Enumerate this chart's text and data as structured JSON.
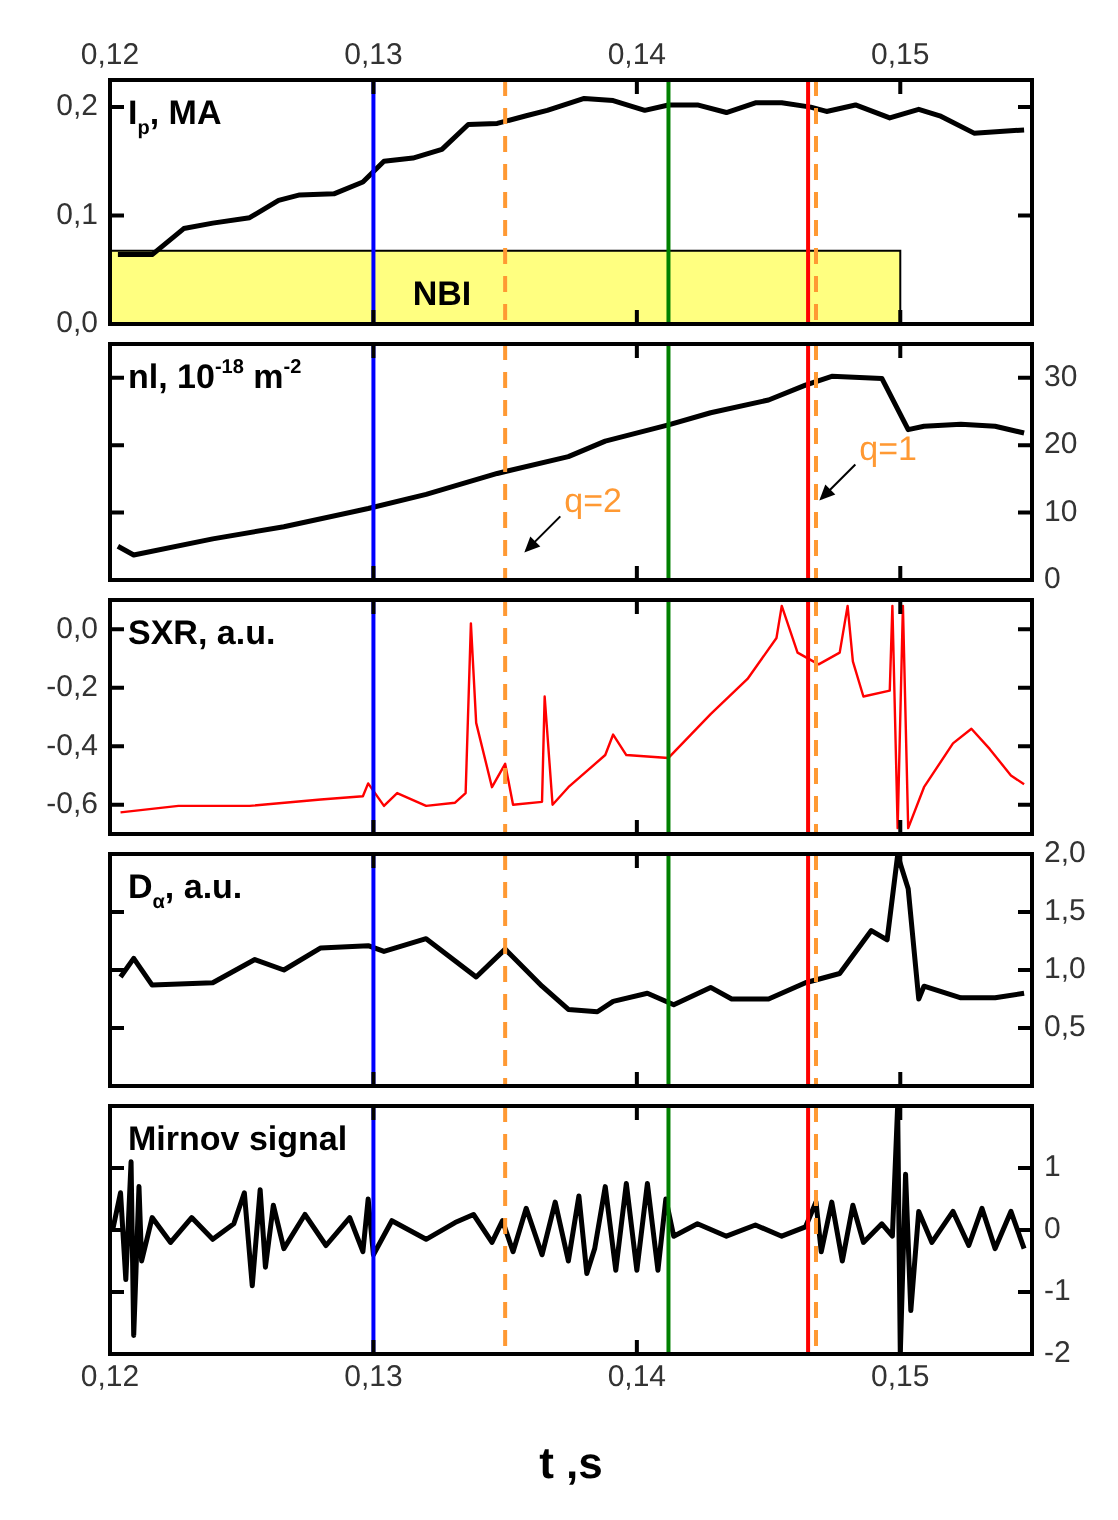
{
  "chart_data": [
    {
      "type": "line",
      "ylabel": "I$_{p}$, MA",
      "tick_labels": "y",
      "xlim": [
        0.12,
        0.155
      ],
      "xticks": [
        {
          "value": 0.12,
          "label": null
        },
        {
          "value": 0.13,
          "label": null
        },
        {
          "value": 0.14,
          "label": null
        },
        {
          "value": 0.15,
          "label": null
        }
      ],
      "x2lim": [
        0.12,
        0.155
      ],
      "x2ticks": [
        {
          "value": 0.12,
          "label": "0,12"
        },
        {
          "value": 0.13,
          "label": "0,13"
        },
        {
          "value": 0.14,
          "label": "0,14"
        },
        {
          "value": 0.15,
          "label": "0,15"
        }
      ],
      "ylim": [
        0,
        0.225
      ],
      "yticks": [
        {
          "value": 0,
          "label": "0,0"
        },
        {
          "value": 0.1,
          "label": "0,1"
        },
        {
          "value": 0.2,
          "label": "0,2"
        }
      ],
      "x": [
        0.1203,
        0.1216,
        0.1228,
        0.1239,
        0.1253,
        0.1264,
        0.1272,
        0.1285,
        0.1296,
        0.1304,
        0.1315,
        0.1326,
        0.1336,
        0.1347,
        0.1358,
        0.1366,
        0.138,
        0.1391,
        0.1403,
        0.1412,
        0.1423,
        0.1434,
        0.1445,
        0.1455,
        0.1466,
        0.1472,
        0.1483,
        0.1496,
        0.1507,
        0.1515,
        0.1528,
        0.1547
      ],
      "series": [
        {
          "color": "#000000",
          "values": [
            0.064,
            0.064,
            0.088,
            0.093,
            0.098,
            0.114,
            0.119,
            0.12,
            0.131,
            0.15,
            0.153,
            0.161,
            0.184,
            0.185,
            0.192,
            0.197,
            0.208,
            0.206,
            0.197,
            0.202,
            0.202,
            0.195,
            0.204,
            0.204,
            0.2,
            0.196,
            0.202,
            0.19,
            0.198,
            0.192,
            0.176,
            0.179
          ]
        }
      ],
      "bands": [
        {
          "axis": "x",
          "from": 0.12,
          "to": 0.15,
          "label": "NBI",
          "color": "#ffff80"
        }
      ],
      "ref_lines": [
        {
          "axis": "x",
          "value": 0.13,
          "color": "#0000ff",
          "line_style": "solid"
        },
        {
          "axis": "x",
          "value": 0.135,
          "color": "#ff9933",
          "line_style": "dashed"
        },
        {
          "axis": "x",
          "value": 0.1412,
          "color": "#008000",
          "line_style": "solid"
        },
        {
          "axis": "x",
          "value": 0.1465,
          "color": "#ff0000",
          "line_style": "solid"
        },
        {
          "axis": "x",
          "value": 0.1468,
          "color": "#ff9933",
          "line_style": "dashed"
        }
      ]
    },
    {
      "type": "line",
      "ylabel": "nl, 10$^{-18}$ m$^{-2}$",
      "tick_labels": "y",
      "xlim": [
        0.12,
        0.155
      ],
      "xticks": [
        {
          "value": 0.12,
          "label": null
        },
        {
          "value": 0.13,
          "label": null
        },
        {
          "value": 0.14,
          "label": null
        },
        {
          "value": 0.15,
          "label": null
        }
      ],
      "y2lim": [
        0,
        35
      ],
      "y2ticks": [
        0,
        10,
        20,
        30
      ],
      "x": [
        0.1203,
        0.1209,
        0.1239,
        0.1266,
        0.1298,
        0.132,
        0.1347,
        0.1374,
        0.1388,
        0.1412,
        0.1428,
        0.145,
        0.1464,
        0.1474,
        0.1493,
        0.1503,
        0.1509,
        0.1523,
        0.1536,
        0.1547
      ],
      "series": [
        {
          "color": "#000000",
          "axis": "y2",
          "values": [
            5.0,
            3.7,
            6.1,
            7.9,
            10.6,
            12.7,
            15.8,
            18.3,
            20.6,
            23,
            24.8,
            26.7,
            28.9,
            30.2,
            29.9,
            22.3,
            22.8,
            23.1,
            22.8,
            21.8
          ]
        }
      ],
      "annotations": [
        "q=2",
        "q=1"
      ],
      "ref_lines": [
        {
          "axis": "x",
          "value": 0.13,
          "color": "#0000ff",
          "line_style": "solid"
        },
        {
          "axis": "x",
          "value": 0.135,
          "color": "#ff9933",
          "line_style": "dashed"
        },
        {
          "axis": "x",
          "value": 0.1412,
          "color": "#008000",
          "line_style": "solid"
        },
        {
          "axis": "x",
          "value": 0.1465,
          "color": "#ff0000",
          "line_style": "solid"
        },
        {
          "axis": "x",
          "value": 0.1468,
          "color": "#ff9933",
          "line_style": "dashed"
        }
      ]
    },
    {
      "type": "line",
      "ylabel": "SXR, a.u.",
      "tick_labels": "y",
      "xlim": [
        0.12,
        0.155
      ],
      "xticks": [
        {
          "value": 0.12,
          "label": null
        },
        {
          "value": 0.13,
          "label": null
        },
        {
          "value": 0.14,
          "label": null
        },
        {
          "value": 0.15,
          "label": null
        }
      ],
      "ylim": [
        -0.7,
        0.1
      ],
      "yticks": [
        {
          "value": -0.6,
          "label": "-0,6"
        },
        {
          "value": -0.4,
          "label": "-0,4"
        },
        {
          "value": -0.2,
          "label": "-0,2"
        },
        {
          "value": 0,
          "label": "0,0"
        }
      ],
      "x": [
        0.1204,
        0.1226,
        0.1253,
        0.128,
        0.1296,
        0.1298,
        0.1304,
        0.1309,
        0.132,
        0.1331,
        0.1335,
        0.1337,
        0.1339,
        0.1345,
        0.135,
        0.1353,
        0.1364,
        0.1365,
        0.1368,
        0.1374,
        0.1388,
        0.1391,
        0.1396,
        0.1412,
        0.1428,
        0.1442,
        0.1453,
        0.1455,
        0.1461,
        0.1469,
        0.1477,
        0.148,
        0.1482,
        0.1486,
        0.1496,
        0.1497,
        0.1499,
        0.1501,
        0.1503,
        0.1509,
        0.152,
        0.1527,
        0.1534,
        0.1542,
        0.1547
      ],
      "series": [
        {
          "color": "#ff0000",
          "values": [
            -0.626,
            -0.604,
            -0.604,
            -0.582,
            -0.571,
            -0.527,
            -0.604,
            -0.56,
            -0.604,
            -0.593,
            -0.56,
            0.02,
            -0.32,
            -0.54,
            -0.46,
            -0.6,
            -0.59,
            -0.23,
            -0.6,
            -0.54,
            -0.43,
            -0.36,
            -0.43,
            -0.44,
            -0.29,
            -0.17,
            -0.03,
            0.08,
            -0.08,
            -0.12,
            -0.08,
            0.08,
            -0.11,
            -0.23,
            -0.21,
            0.08,
            -0.68,
            0.08,
            -0.68,
            -0.54,
            -0.39,
            -0.34,
            -0.41,
            -0.5,
            -0.53
          ]
        }
      ],
      "ref_lines": [
        {
          "axis": "x",
          "value": 0.13,
          "color": "#0000ff",
          "line_style": "solid"
        },
        {
          "axis": "x",
          "value": 0.135,
          "color": "#ff9933",
          "line_style": "dashed"
        },
        {
          "axis": "x",
          "value": 0.1412,
          "color": "#008000",
          "line_style": "solid"
        },
        {
          "axis": "x",
          "value": 0.1465,
          "color": "#ff0000",
          "line_style": "solid"
        },
        {
          "axis": "x",
          "value": 0.1468,
          "color": "#ff9933",
          "line_style": "dashed"
        }
      ]
    },
    {
      "type": "line",
      "ylabel": "D$_{α}$, a.u.",
      "tick_labels": "y",
      "xlim": [
        0.12,
        0.155
      ],
      "xticks": [
        {
          "value": 0.12,
          "label": null
        },
        {
          "value": 0.13,
          "label": null
        },
        {
          "value": 0.14,
          "label": null
        },
        {
          "value": 0.15,
          "label": null
        }
      ],
      "y2lim": [
        0,
        2
      ],
      "y2ticks": [
        {
          "value": 0.5,
          "label": "0,5"
        },
        {
          "value": 1,
          "label": "1,0"
        },
        {
          "value": 1.5,
          "label": "1,5"
        },
        {
          "value": 2,
          "label": "2,0"
        }
      ],
      "x": [
        0.1204,
        0.1209,
        0.1216,
        0.1239,
        0.1255,
        0.1266,
        0.128,
        0.1298,
        0.1304,
        0.132,
        0.1339,
        0.135,
        0.1364,
        0.1374,
        0.1385,
        0.1391,
        0.1404,
        0.1414,
        0.1428,
        0.1436,
        0.145,
        0.1464,
        0.1477,
        0.1489,
        0.1495,
        0.1499,
        0.1503,
        0.1507,
        0.1509,
        0.1523,
        0.1536,
        0.1547
      ],
      "series": [
        {
          "color": "#000000",
          "axis": "y2",
          "values": [
            0.94,
            1.1,
            0.87,
            0.89,
            1.09,
            1.0,
            1.19,
            1.21,
            1.16,
            1.27,
            0.94,
            1.18,
            0.86,
            0.66,
            0.64,
            0.73,
            0.8,
            0.7,
            0.85,
            0.75,
            0.75,
            0.89,
            0.97,
            1.34,
            1.26,
            1.99,
            1.7,
            0.75,
            0.86,
            0.76,
            0.76,
            0.8
          ]
        }
      ],
      "ref_lines": [
        {
          "axis": "x",
          "value": 0.13,
          "color": "#0000ff",
          "line_style": "solid"
        },
        {
          "axis": "x",
          "value": 0.135,
          "color": "#ff9933",
          "line_style": "dashed"
        },
        {
          "axis": "x",
          "value": 0.1412,
          "color": "#008000",
          "line_style": "solid"
        },
        {
          "axis": "x",
          "value": 0.1465,
          "color": "#ff0000",
          "line_style": "solid"
        },
        {
          "axis": "x",
          "value": 0.1468,
          "color": "#ff9933",
          "line_style": "dashed"
        }
      ]
    },
    {
      "type": "line",
      "ylabel": "Mirnov signal",
      "xlabel": "t ,s",
      "xlim": [
        0.12,
        0.155
      ],
      "xticks": [
        {
          "value": 0.12,
          "label": "0,12"
        },
        {
          "value": 0.13,
          "label": "0,13"
        },
        {
          "value": 0.14,
          "label": "0,14"
        },
        {
          "value": 0.15,
          "label": "0,15"
        }
      ],
      "y2lim": [
        -2,
        2
      ],
      "y2ticks": [
        -2,
        -1,
        0,
        1
      ],
      "x": [
        0.1201,
        0.1204,
        0.1206,
        0.1208,
        0.1209,
        0.1211,
        0.1212,
        0.1216,
        0.1223,
        0.1231,
        0.1239,
        0.1247,
        0.1251,
        0.1254,
        0.1257,
        0.1259,
        0.1262,
        0.1266,
        0.1274,
        0.1282,
        0.1291,
        0.1296,
        0.1298,
        0.13,
        0.1307,
        0.132,
        0.1331,
        0.1338,
        0.1345,
        0.1349,
        0.1353,
        0.1358,
        0.1364,
        0.1369,
        0.1374,
        0.1378,
        0.1381,
        0.1384,
        0.1388,
        0.1392,
        0.1396,
        0.14,
        0.1404,
        0.1408,
        0.1411,
        0.1414,
        0.1423,
        0.1434,
        0.1445,
        0.1455,
        0.1464,
        0.1468,
        0.147,
        0.1474,
        0.1478,
        0.1482,
        0.1486,
        0.1493,
        0.1497,
        0.1499,
        0.15,
        0.1502,
        0.1504,
        0.1507,
        0.1512,
        0.152,
        0.1526,
        0.1531,
        0.1536,
        0.1542,
        0.1547
      ],
      "series": [
        {
          "color": "#000000",
          "axis": "y2",
          "values": [
            0,
            0.6,
            -0.8,
            1.1,
            -1.7,
            0.7,
            -0.5,
            0.2,
            -0.2,
            0.2,
            -0.15,
            0.1,
            0.6,
            -0.9,
            0.65,
            -0.6,
            0.4,
            -0.3,
            0.25,
            -0.25,
            0.2,
            -0.35,
            0.5,
            -0.4,
            0.15,
            -0.15,
            0.12,
            0.25,
            -0.2,
            0.15,
            -0.35,
            0.35,
            -0.4,
            0.45,
            -0.5,
            0.55,
            -0.7,
            -0.3,
            0.7,
            -0.65,
            0.75,
            -0.65,
            0.75,
            -0.65,
            0.5,
            -0.1,
            0.1,
            -0.1,
            0.08,
            -0.1,
            0.05,
            0.45,
            -0.35,
            0.45,
            -0.5,
            0.4,
            -0.2,
            0.1,
            -0.1,
            2.0,
            -2.0,
            0.9,
            -1.3,
            0.3,
            -0.2,
            0.3,
            -0.25,
            0.35,
            -0.3,
            0.3,
            -0.3
          ]
        }
      ],
      "ref_lines": [
        {
          "axis": "x",
          "value": 0.13,
          "color": "#0000ff",
          "line_style": "solid"
        },
        {
          "axis": "x",
          "value": 0.135,
          "color": "#ff9933",
          "line_style": "dashed"
        },
        {
          "axis": "x",
          "value": 0.1412,
          "color": "#008000",
          "line_style": "solid"
        },
        {
          "axis": "x",
          "value": 0.1465,
          "color": "#ff0000",
          "line_style": "solid"
        },
        {
          "axis": "x",
          "value": 0.1468,
          "color": "#ff9933",
          "line_style": "dashed"
        }
      ]
    }
  ]
}
